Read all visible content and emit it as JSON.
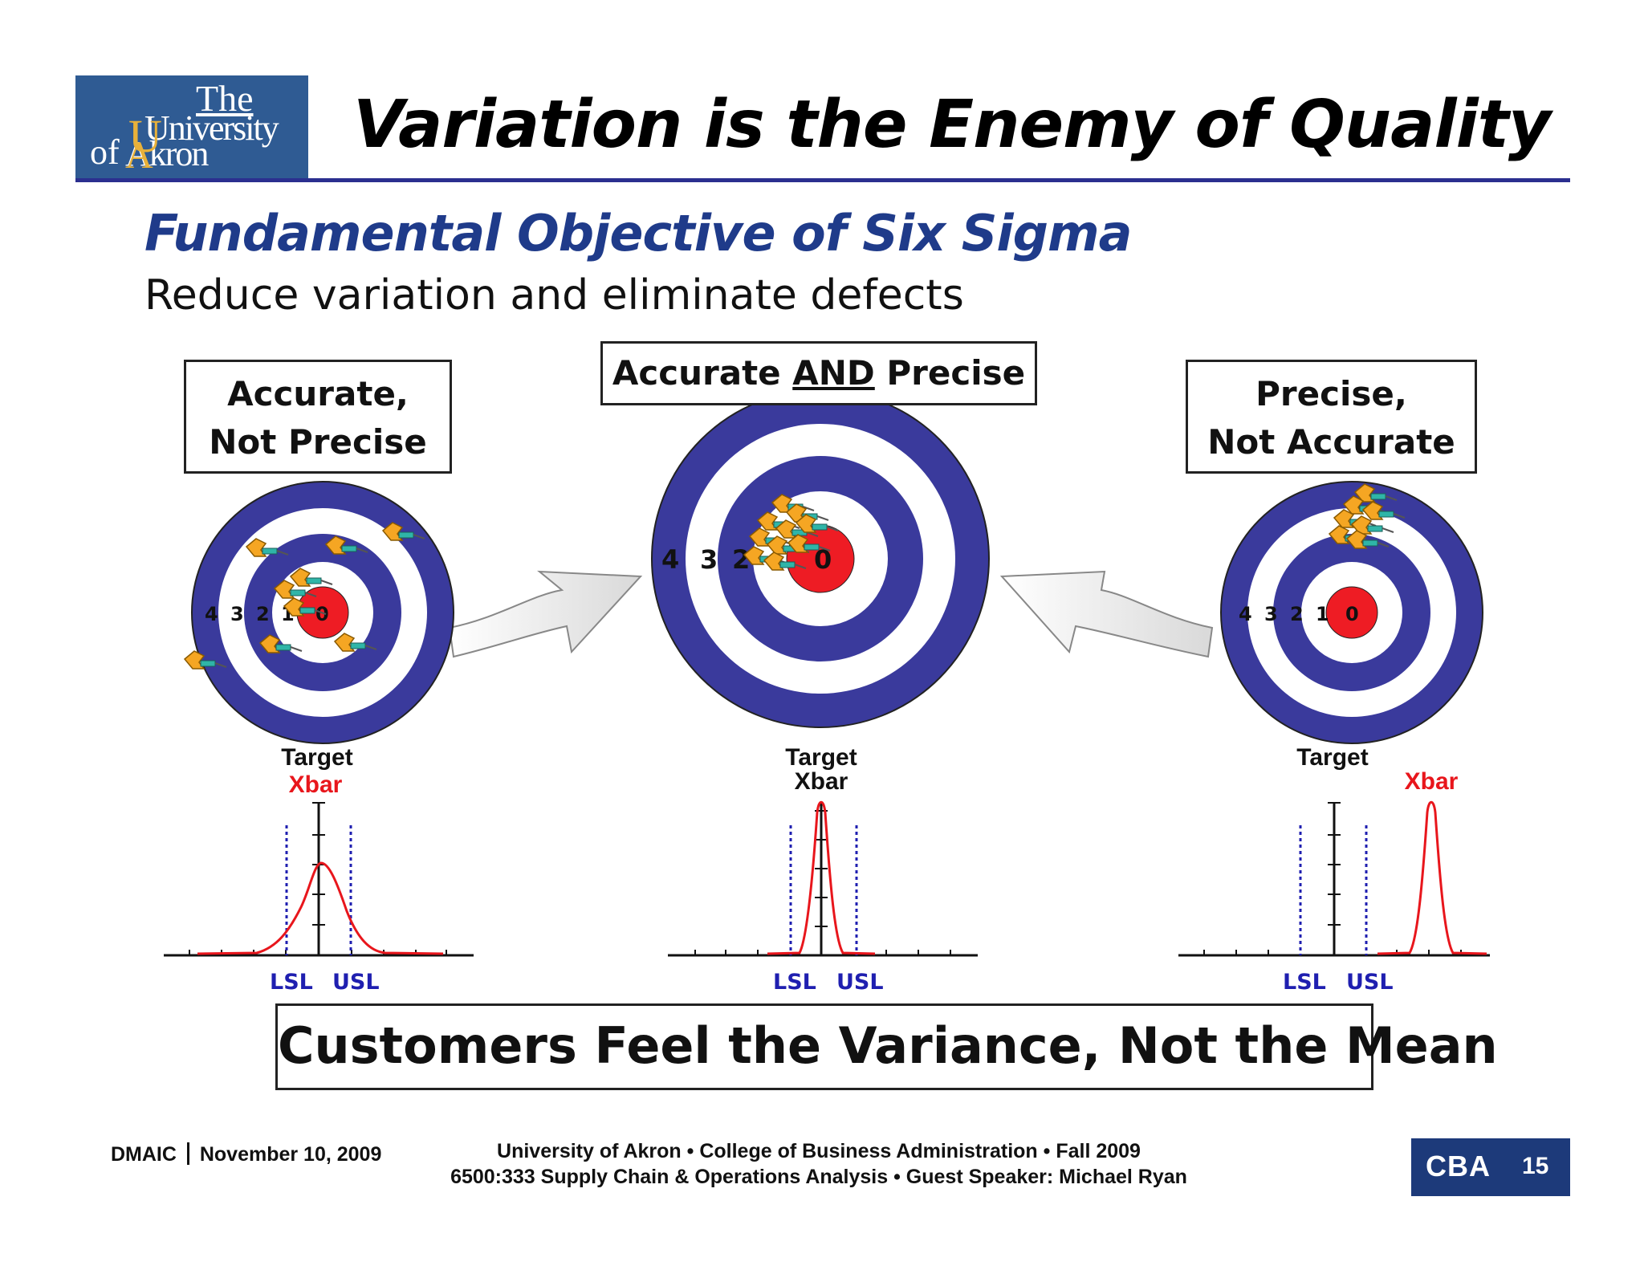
{
  "logo": {
    "line1": "The",
    "line2": "University",
    "line3_prefix": "of",
    "line3": "Akron"
  },
  "title": "Variation is the Enemy of Quality",
  "subtitle": "Fundamental Objective of Six Sigma",
  "subtext": "Reduce variation and eliminate defects",
  "panels": {
    "left": {
      "label_line1": "Accurate,",
      "label_line2": "Not Precise",
      "target": "Target",
      "xbar": "Xbar",
      "lsl": "LSL",
      "usl": "USL"
    },
    "center": {
      "label_pre": "Accurate ",
      "label_em": "AND",
      "label_post": " Precise",
      "target": "Target",
      "xbar": "Xbar",
      "lsl": "LSL",
      "usl": "USL"
    },
    "right": {
      "label_line1": "Precise,",
      "label_line2": "Not Accurate",
      "target": "Target",
      "xbar": "Xbar",
      "lsl": "LSL",
      "usl": "USL"
    }
  },
  "ring_numbers": [
    "4",
    "3",
    "2",
    "1",
    "0"
  ],
  "colors": {
    "ring_blue": "#3a3a9c",
    "bull_red": "#ee1c24",
    "curve_red": "#e8161c",
    "spec_blue": "#1f1fb0",
    "dart_orange": "#f5a623"
  },
  "tagline": "Customers Feel the Variance, Not the Mean",
  "footer": {
    "left_code": "DMAIC",
    "left_date": "November 10, 2009",
    "line1": "University of Akron • College of Business Administration •  Fall 2009",
    "line2": "6500:333 Supply Chain & Operations Analysis • Guest Speaker: Michael Ryan",
    "badge": "CBA",
    "page_number": "15"
  }
}
